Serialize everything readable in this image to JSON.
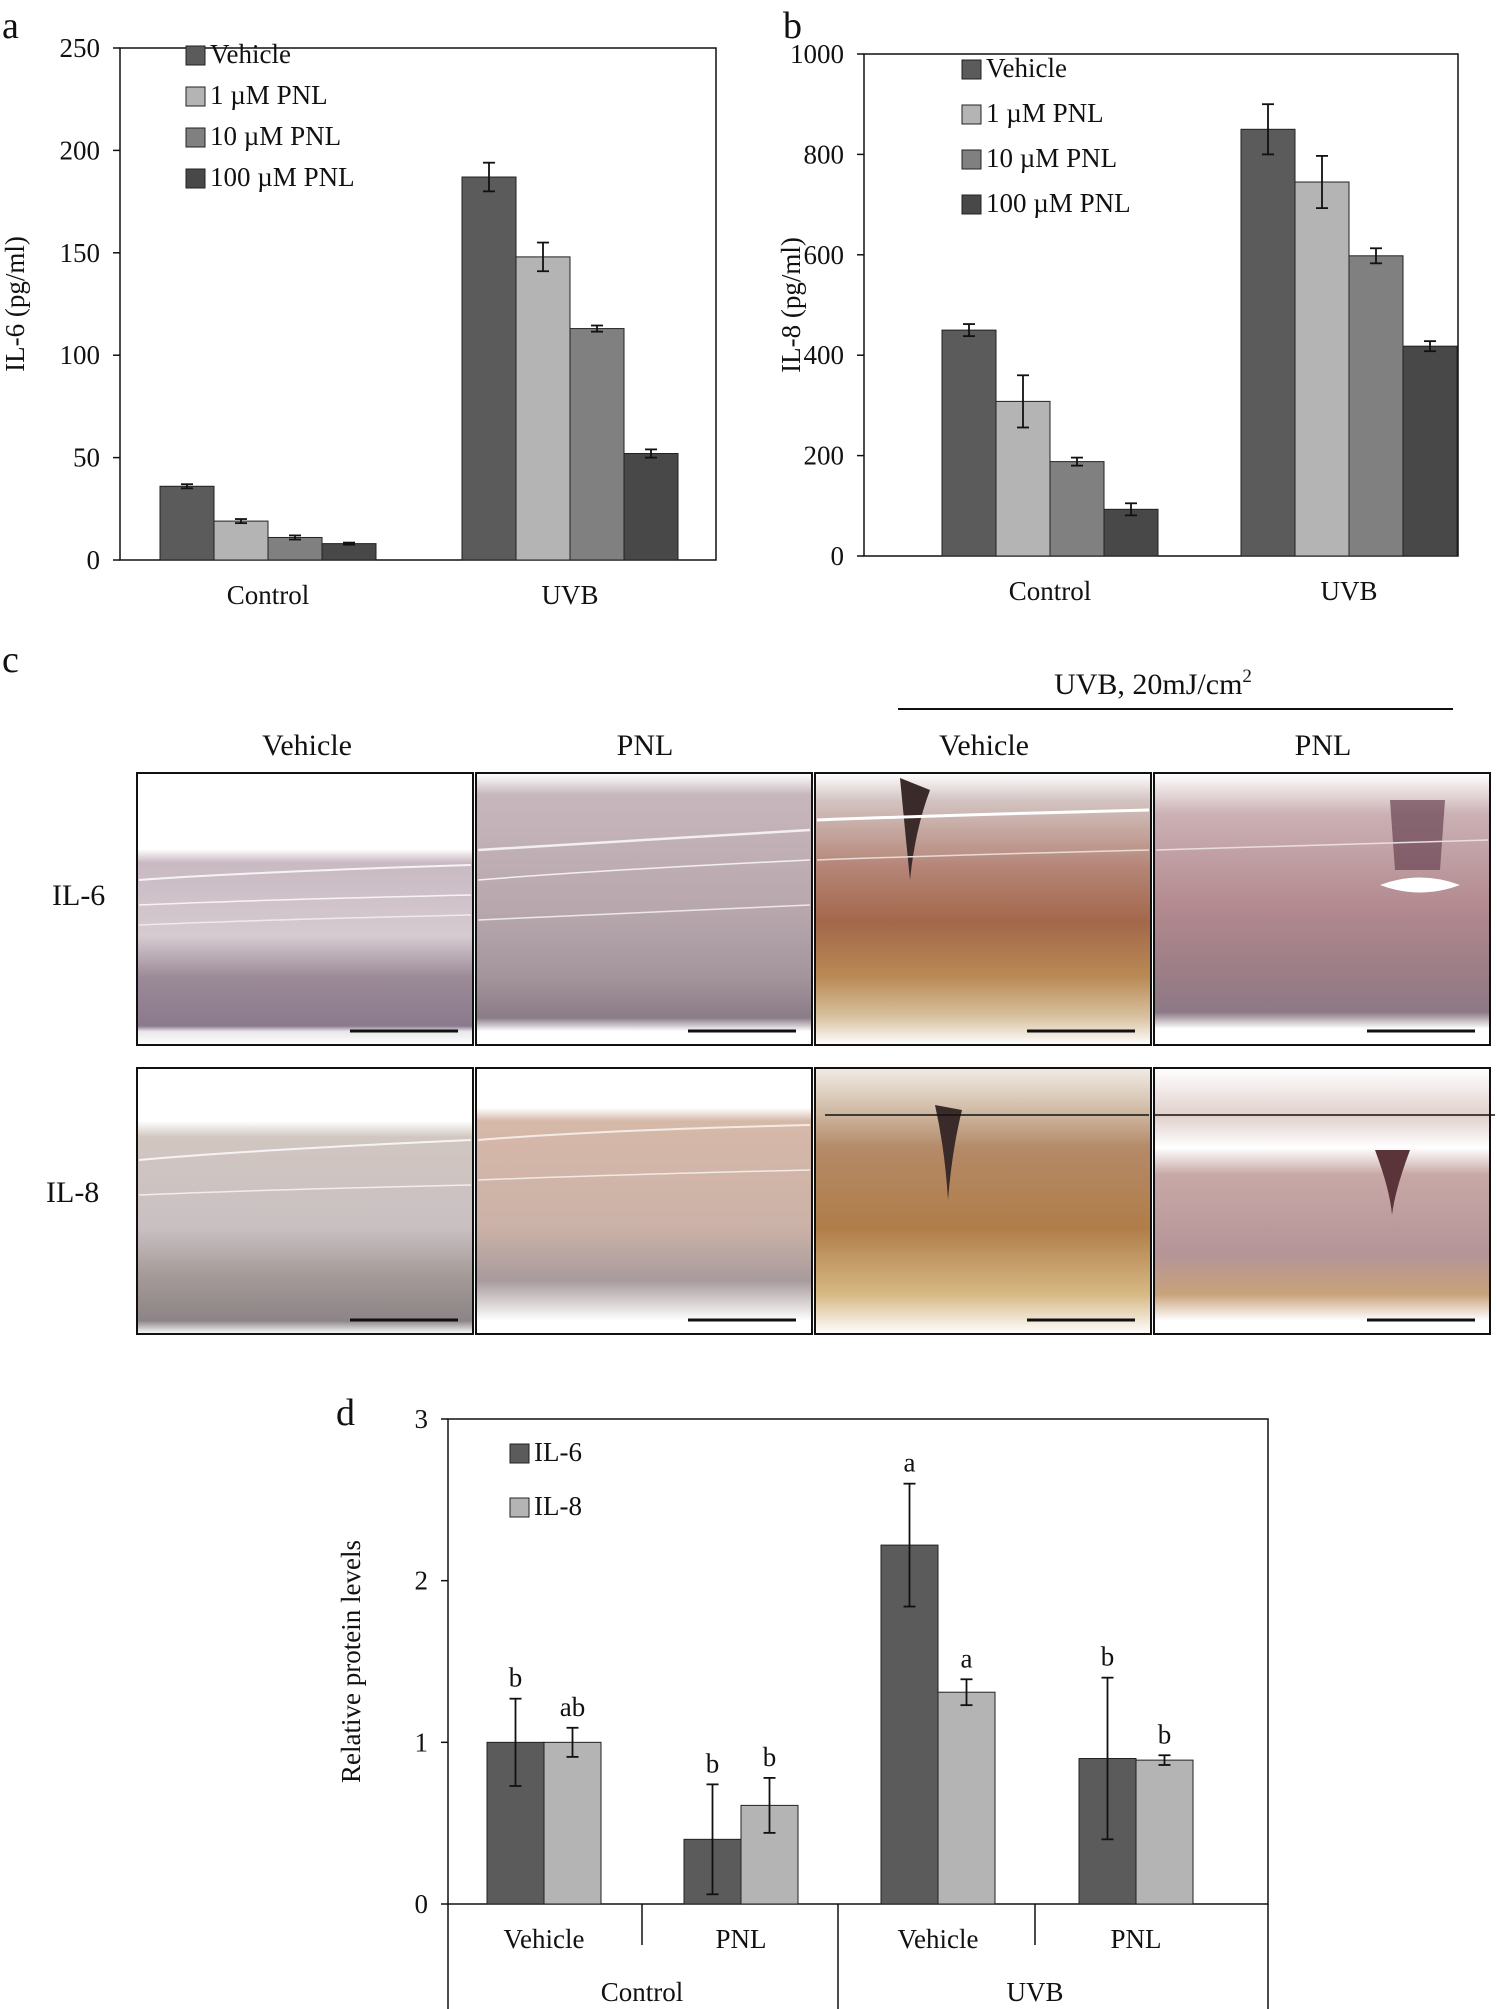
{
  "panels": {
    "a": "a",
    "b": "b",
    "c": "c",
    "d": "d"
  },
  "colors": {
    "vehicle": "#5b5b5b",
    "pnl1": "#b4b4b4",
    "pnl10": "#808080",
    "pnl100": "#484848",
    "il6": "#5b5b5b",
    "il8": "#b4b4b4"
  },
  "chart_data": [
    {
      "type": "bar",
      "panel": "a",
      "categories": [
        "Control",
        "UVB"
      ],
      "ylabel": "IL-6 (pg/ml)",
      "ylim": [
        0,
        250
      ],
      "yticks": [
        0,
        50,
        100,
        150,
        200,
        250
      ],
      "legend": "top-left",
      "series": [
        {
          "name": "Vehicle",
          "values": [
            36,
            187
          ],
          "errors": [
            1,
            7
          ],
          "color": "#5b5b5b"
        },
        {
          "name": "1 µM PNL",
          "values": [
            19,
            148
          ],
          "errors": [
            1,
            7
          ],
          "color": "#b4b4b4"
        },
        {
          "name": "10 µM PNL",
          "values": [
            11,
            113
          ],
          "errors": [
            1,
            1.5
          ],
          "color": "#808080"
        },
        {
          "name": "100 µM PNL",
          "values": [
            8,
            52
          ],
          "errors": [
            0.5,
            2
          ],
          "color": "#484848"
        }
      ]
    },
    {
      "type": "bar",
      "panel": "b",
      "categories": [
        "Control",
        "UVB"
      ],
      "ylabel": "IL-8 (pg/ml)",
      "ylim": [
        0,
        1000
      ],
      "yticks": [
        0,
        200,
        400,
        600,
        800,
        1000
      ],
      "legend": "top-left",
      "series": [
        {
          "name": "Vehicle",
          "values": [
            450,
            850
          ],
          "errors": [
            12,
            50
          ],
          "color": "#5b5b5b"
        },
        {
          "name": "1 µM PNL",
          "values": [
            308,
            745
          ],
          "errors": [
            52,
            52
          ],
          "color": "#b4b4b4"
        },
        {
          "name": "10 µM PNL",
          "values": [
            188,
            598
          ],
          "errors": [
            8,
            15
          ],
          "color": "#808080"
        },
        {
          "name": "100 µM PNL",
          "values": [
            93,
            418
          ],
          "errors": [
            12,
            10
          ],
          "color": "#484848"
        }
      ]
    },
    {
      "type": "bar",
      "panel": "d",
      "categories": [
        "Vehicle",
        "PNL",
        "Vehicle",
        "PNL"
      ],
      "groups": [
        "Control",
        "UVB"
      ],
      "ylabel": "Relative protein  levels",
      "ylim": [
        0,
        3
      ],
      "yticks": [
        0,
        1,
        2,
        3
      ],
      "legend": "top-left",
      "series": [
        {
          "name": "IL-6",
          "values": [
            1.0,
            0.4,
            2.22,
            0.9
          ],
          "errors": [
            0.27,
            0.34,
            0.38,
            0.5
          ],
          "letters": [
            "b",
            "b",
            "a",
            "b"
          ],
          "color": "#5b5b5b"
        },
        {
          "name": "IL-8",
          "values": [
            1.0,
            0.61,
            1.31,
            0.89
          ],
          "errors": [
            0.09,
            0.17,
            0.08,
            0.03
          ],
          "letters": [
            "ab",
            "b",
            "a",
            "b"
          ],
          "color": "#b4b4b4"
        }
      ]
    }
  ],
  "micrographs": {
    "header": "UVB, 20mJ/cm",
    "header_sup": "2",
    "columns": [
      "Vehicle",
      "PNL",
      "Vehicle",
      "PNL"
    ],
    "rows": [
      "IL-6",
      "IL-8"
    ]
  }
}
